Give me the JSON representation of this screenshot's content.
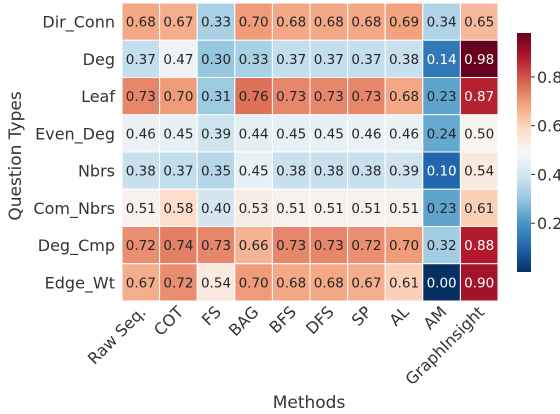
{
  "chart_data": {
    "type": "heatmap",
    "title": "",
    "xlabel": "Methods",
    "ylabel": "Question Types",
    "x_categories": [
      "Raw Seq.",
      "COT",
      "FS",
      "BAG",
      "BFS",
      "DFS",
      "SP",
      "AL",
      "AM",
      "GraphInsight"
    ],
    "y_categories": [
      "Dir_Conn",
      "Deg",
      "Leaf",
      "Even_Deg",
      "Nbrs",
      "Com_Nbrs",
      "Deg_Cmp",
      "Edge_Wt"
    ],
    "values": [
      [
        0.68,
        0.67,
        0.33,
        0.7,
        0.68,
        0.68,
        0.68,
        0.69,
        0.34,
        0.65
      ],
      [
        0.37,
        0.47,
        0.3,
        0.33,
        0.37,
        0.37,
        0.37,
        0.38,
        0.14,
        0.98
      ],
      [
        0.73,
        0.7,
        0.31,
        0.76,
        0.73,
        0.73,
        0.73,
        0.68,
        0.23,
        0.87
      ],
      [
        0.46,
        0.45,
        0.39,
        0.44,
        0.45,
        0.45,
        0.46,
        0.46,
        0.24,
        0.5
      ],
      [
        0.38,
        0.37,
        0.35,
        0.45,
        0.38,
        0.38,
        0.38,
        0.39,
        0.1,
        0.54
      ],
      [
        0.51,
        0.58,
        0.4,
        0.53,
        0.51,
        0.51,
        0.51,
        0.51,
        0.23,
        0.61
      ],
      [
        0.72,
        0.74,
        0.73,
        0.66,
        0.73,
        0.73,
        0.72,
        0.7,
        0.32,
        0.88
      ],
      [
        0.67,
        0.72,
        0.54,
        0.7,
        0.68,
        0.68,
        0.67,
        0.61,
        0.0,
        0.9
      ]
    ],
    "annotation_format": "0.00",
    "colormap": "RdBu_r",
    "colormap_stops": [
      "#053061",
      "#2166ac",
      "#4393c3",
      "#92c5de",
      "#d1e5f0",
      "#f7f7f7",
      "#fddbc7",
      "#f4a582",
      "#d6604d",
      "#b2182b",
      "#67001f"
    ],
    "vmin": 0.0,
    "vmax": 0.98,
    "colorbar": {
      "ticks": [
        0.2,
        0.4,
        0.6,
        0.8
      ],
      "tick_labels": [
        "0.2",
        "0.4",
        "0.6",
        "0.8"
      ],
      "placement": "right"
    },
    "cell_border_color": "#ffffff"
  }
}
